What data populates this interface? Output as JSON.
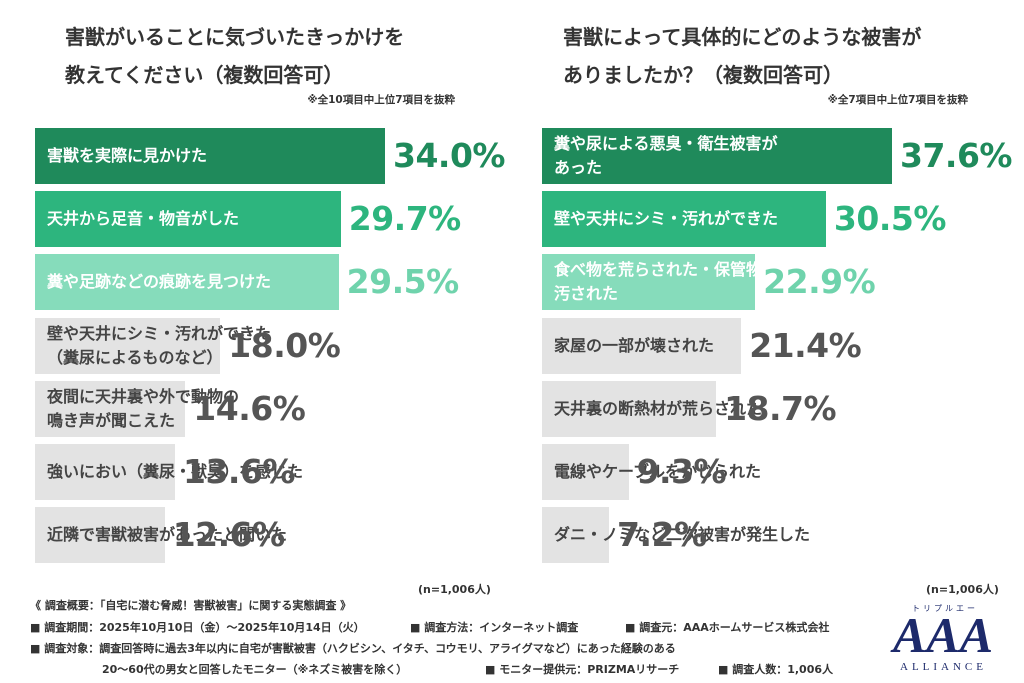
{
  "chart_data": [
    {
      "type": "bar",
      "orientation": "horizontal",
      "title": "害獣がいることに気づいたきっかけを\n教えてください（複数回答可）",
      "note": "※全10項目中上位7項目を抜粋",
      "categories": [
        "害獣を実際に見かけた",
        "天井から足音・物音がした",
        "糞や足跡などの痕跡を見つけた",
        "壁や天井にシミ・汚れができた\n（糞尿によるものなど）",
        "夜間に天井裏や外で動物の\n鳴き声が聞こえた",
        "強いにおい（糞尿・獣臭）を感じた",
        "近隣で害獣被害があったと聞いた"
      ],
      "values": [
        34.0,
        29.7,
        29.5,
        18.0,
        14.6,
        13.6,
        12.6
      ],
      "value_labels": [
        "34.0%",
        "29.7%",
        "29.5%",
        "18.0%",
        "14.6%",
        "13.6%",
        "12.6%"
      ],
      "colors": [
        "#1f8a5b",
        "#2db57e",
        "#86dcbb",
        "#e3e3e3",
        "#e3e3e3",
        "#e3e3e3",
        "#e3e3e3"
      ],
      "label_colors": [
        "#1f8a5b",
        "#2db57e",
        "#6fd3ac",
        "#555555",
        "#555555",
        "#555555",
        "#555555"
      ],
      "sample_label": "(n=1,006人)"
    },
    {
      "type": "bar",
      "orientation": "horizontal",
      "title": "害獣によって具体的にどのような被害が\nありましたか？（複数回答可）",
      "note": "※全7項目中上位7項目を抜粋",
      "categories": [
        "糞や尿による悪臭・衛生被害が\nあった",
        "壁や天井にシミ・汚れができた",
        "食べ物を荒らされた・保管物を\n汚された",
        "家屋の一部が壊された",
        "天井裏の断熱材が荒らされた",
        "電線やケーブルをかじられた",
        "ダニ・ノミなど二次被害が発生した"
      ],
      "values": [
        37.6,
        30.5,
        22.9,
        21.4,
        18.7,
        9.3,
        7.2
      ],
      "value_labels": [
        "37.6%",
        "30.5%",
        "22.9%",
        "21.4%",
        "18.7%",
        "9.3%",
        "7.2%"
      ],
      "colors": [
        "#1f8a5b",
        "#2db57e",
        "#86dcbb",
        "#e3e3e3",
        "#e3e3e3",
        "#e3e3e3",
        "#e3e3e3"
      ],
      "label_colors": [
        "#1f8a5b",
        "#2db57e",
        "#6fd3ac",
        "#555555",
        "#555555",
        "#555555",
        "#555555"
      ],
      "sample_label": "(n=1,006人)"
    }
  ],
  "footer": {
    "heading": "《 調査概要：「自宅に潜む脅威！害獣被害」に関する実態調査 》",
    "period": "■ 調査期間：2025年10月10日（金）～2025年10月14日（火）",
    "method": "■ 調査方法：インターネット調査",
    "source": "■ 調査元：AAAホームサービス株式会社",
    "target": "■ 調査対象：調査回答時に過去3年以内に自宅が害獣被害（ハクビシン、イタチ、コウモリ、アライグマなど）にあった経験のある",
    "target_cont": "20～60代の男女と回答したモニター（※ネズミ被害を除く）",
    "provider": "■ モニター提供元：PRIZMAリサーチ",
    "count": "■ 調査人数：1,006人"
  },
  "logo": {
    "kana": "トリプルエー",
    "mark": "AAA",
    "name": "ALLIANCE"
  }
}
